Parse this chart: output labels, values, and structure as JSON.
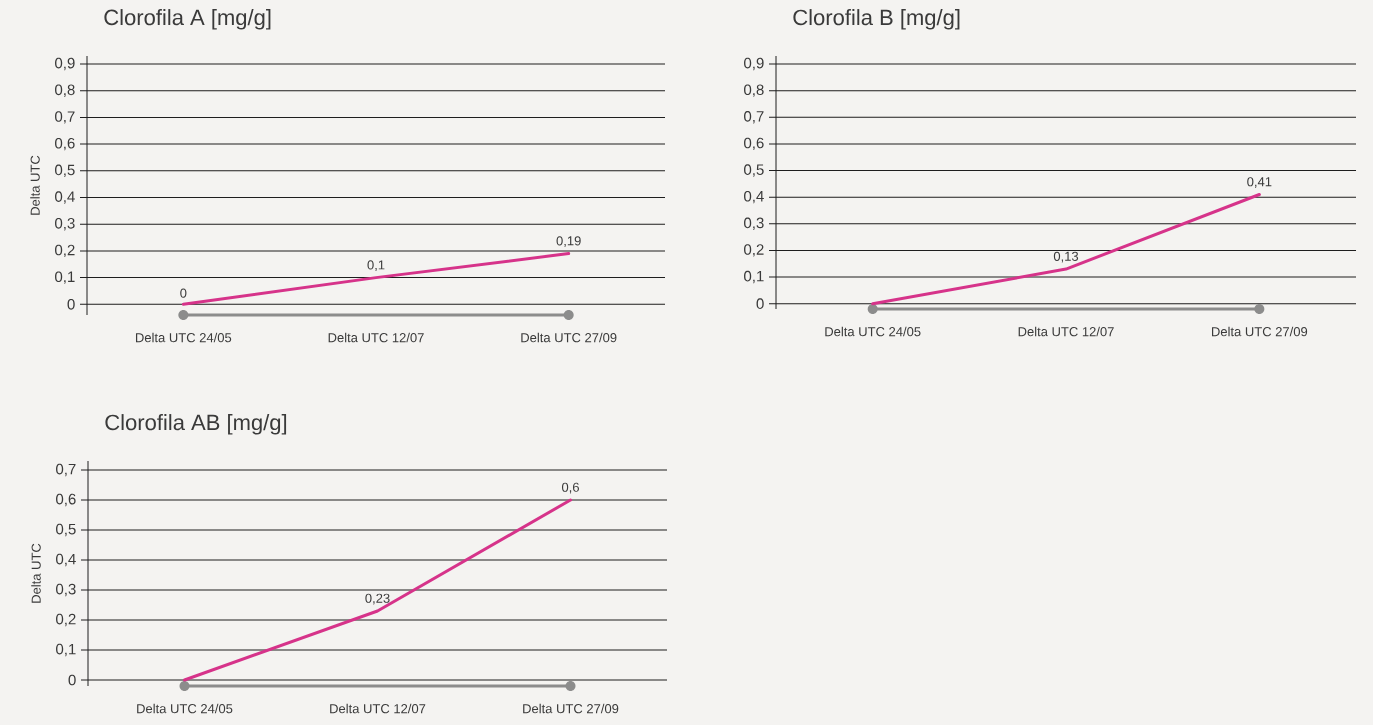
{
  "chart_data": [
    {
      "type": "line",
      "title": "Clorofila A [mg/g]",
      "ylabel": "Delta UTC",
      "categories": [
        "Delta UTC 24/05",
        "Delta UTC 12/07",
        "Delta UTC 27/09"
      ],
      "values": [
        0,
        0.1,
        0.19
      ],
      "value_labels": [
        "0",
        "0,1",
        "0,19"
      ],
      "color": "#d6338a",
      "ylim": [
        -0.04,
        0.93
      ],
      "yticks": [
        0,
        {
          "value": 0.1,
          "label": "0,1"
        },
        {
          "value": 0.2,
          "label": "0,2"
        },
        {
          "value": 0.3,
          "label": "0,3"
        },
        {
          "value": 0.4,
          "label": "0,4"
        },
        {
          "value": 0.5,
          "label": "0,5"
        },
        {
          "value": 0.6,
          "label": "0,6"
        },
        {
          "value": 0.7,
          "label": "0,7"
        },
        {
          "value": 0.8,
          "label": "0,8"
        },
        {
          "value": 0.9,
          "label": "0,9"
        }
      ],
      "grid": "y"
    },
    {
      "type": "line",
      "title": "Clorofila B [mg/g]",
      "categories": [
        "Delta UTC 24/05",
        "Delta UTC 12/07",
        "Delta UTC 27/09"
      ],
      "values": [
        0,
        0.13,
        0.41
      ],
      "value_labels": [
        null,
        "0,13",
        "0,41"
      ],
      "color": "#d6338a",
      "ylim": [
        -0.02,
        0.93
      ],
      "yticks": [
        0,
        {
          "value": 0.1,
          "label": "0,1"
        },
        {
          "value": 0.2,
          "label": "0,2"
        },
        {
          "value": 0.3,
          "label": "0,3"
        },
        {
          "value": 0.4,
          "label": "0,4"
        },
        {
          "value": 0.5,
          "label": "0,5"
        },
        {
          "value": 0.6,
          "label": "0,6"
        },
        {
          "value": 0.7,
          "label": "0,7"
        },
        {
          "value": 0.8,
          "label": "0,8"
        },
        {
          "value": 0.9,
          "label": "0,9"
        }
      ],
      "grid": "y"
    },
    {
      "type": "line",
      "title": "Clorofila AB [mg/g]",
      "ylabel": "Delta UTC",
      "categories": [
        "Delta UTC 24/05",
        "Delta UTC 12/07",
        "Delta UTC 27/09"
      ],
      "values": [
        0,
        0.23,
        0.6
      ],
      "value_labels": [
        null,
        "0,23",
        "0,6"
      ],
      "color": "#d6338a",
      "ylim": [
        -0.02,
        0.73
      ],
      "yticks": [
        0,
        {
          "value": 0.1,
          "label": "0,1"
        },
        {
          "value": 0.2,
          "label": "0,2"
        },
        {
          "value": 0.3,
          "label": "0,3"
        },
        {
          "value": 0.4,
          "label": "0,4"
        },
        {
          "value": 0.5,
          "label": "0,5"
        },
        {
          "value": 0.6,
          "label": "0,6"
        },
        {
          "value": 0.7,
          "label": "0,7"
        }
      ],
      "grid": "y"
    }
  ]
}
